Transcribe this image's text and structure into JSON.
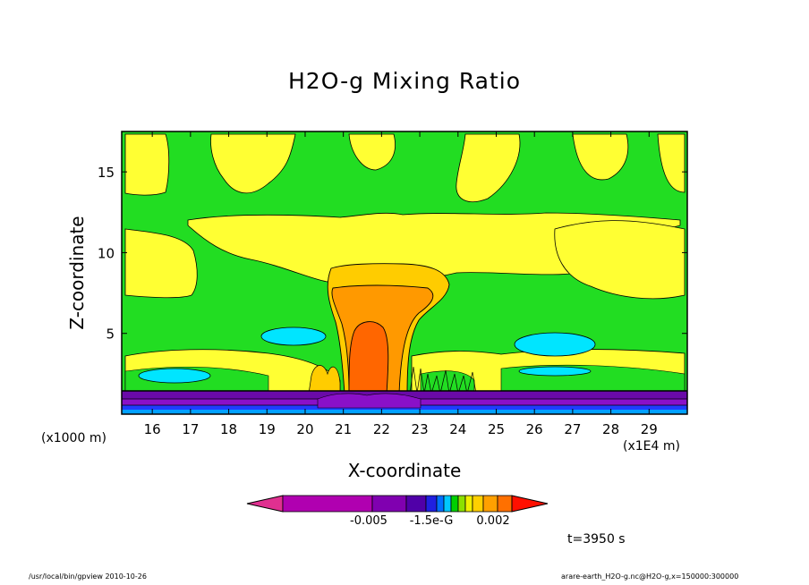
{
  "chart_data": {
    "type": "contour",
    "title": "H2O-g Mixing Ratio",
    "xlabel": "X-coordinate",
    "ylabel": "Z-coordinate",
    "x_unit": "(x1E4 m)",
    "y_unit": "(x1000 m)",
    "xlim": [
      15.2,
      30.0
    ],
    "ylim": [
      0.0,
      17.5
    ],
    "x_ticks": [
      16,
      17,
      18,
      19,
      20,
      21,
      22,
      23,
      24,
      25,
      26,
      27,
      28,
      29
    ],
    "y_ticks": [
      5,
      10,
      15
    ],
    "colorbar": {
      "labels": [
        "-0.005",
        "-1.5e-G",
        "0.002"
      ],
      "colors": [
        "#e03090",
        "#b000b0",
        "#8000b0",
        "#5000a8",
        "#2020e0",
        "#0070ff",
        "#00c8ff",
        "#00d000",
        "#8ce000",
        "#f0f000",
        "#ffd000",
        "#ffa000",
        "#ff7000",
        "#ff1000"
      ]
    },
    "field_colors": {
      "background": "#22dd22",
      "dry_band": "#ffff33",
      "plume_outer": "#ffcc00",
      "plume_core": "#ff9900",
      "plume_center": "#ff6600",
      "cyan_pocket": "#00e5ff",
      "boundary_purple": "#6a0aa8",
      "boundary_blue": "#1f3cff"
    },
    "annotation": "t=3950 s"
  },
  "footer": {
    "left": "/usr/local/bin/gpview  2010-10-26",
    "right": "arare-earth_H2O-g.nc@H2O-g,x=150000:300000"
  }
}
